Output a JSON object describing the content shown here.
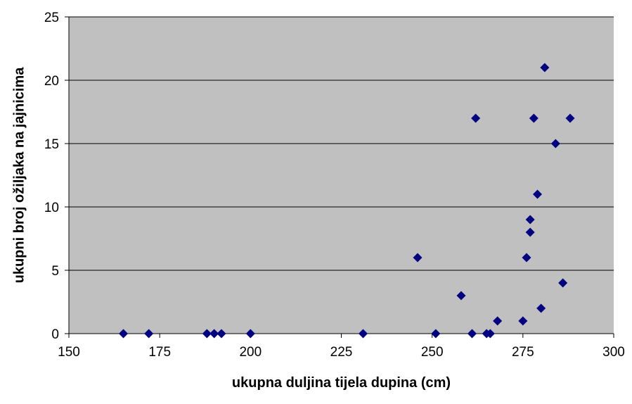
{
  "chart_data": {
    "type": "scatter",
    "title": "",
    "xlabel": "ukupna duljina tijela dupina (cm)",
    "ylabel": "ukupni broj ožiljaka na jajnicima",
    "xlim": [
      150,
      300
    ],
    "ylim": [
      0,
      25
    ],
    "xticks": [
      150,
      175,
      200,
      225,
      250,
      275,
      300
    ],
    "yticks": [
      0,
      5,
      10,
      15,
      20,
      25
    ],
    "grid": "horizontal",
    "legend": "none",
    "colors": {
      "plot_background": "#c0c0c0",
      "marker": "#000080",
      "gridline": "#000000",
      "axis": "#000000"
    },
    "series": [
      {
        "marker": "diamond",
        "points": [
          {
            "x": 165,
            "y": 0
          },
          {
            "x": 172,
            "y": 0
          },
          {
            "x": 188,
            "y": 0
          },
          {
            "x": 190,
            "y": 0
          },
          {
            "x": 192,
            "y": 0
          },
          {
            "x": 200,
            "y": 0
          },
          {
            "x": 231,
            "y": 0
          },
          {
            "x": 246,
            "y": 6
          },
          {
            "x": 251,
            "y": 0
          },
          {
            "x": 258,
            "y": 3
          },
          {
            "x": 261,
            "y": 0
          },
          {
            "x": 262,
            "y": 17
          },
          {
            "x": 265,
            "y": 0
          },
          {
            "x": 266,
            "y": 0
          },
          {
            "x": 268,
            "y": 1
          },
          {
            "x": 275,
            "y": 1
          },
          {
            "x": 276,
            "y": 6
          },
          {
            "x": 277,
            "y": 8
          },
          {
            "x": 277,
            "y": 9
          },
          {
            "x": 278,
            "y": 17
          },
          {
            "x": 279,
            "y": 11
          },
          {
            "x": 280,
            "y": 2
          },
          {
            "x": 281,
            "y": 21
          },
          {
            "x": 284,
            "y": 15
          },
          {
            "x": 286,
            "y": 4
          },
          {
            "x": 288,
            "y": 17
          }
        ]
      }
    ]
  }
}
